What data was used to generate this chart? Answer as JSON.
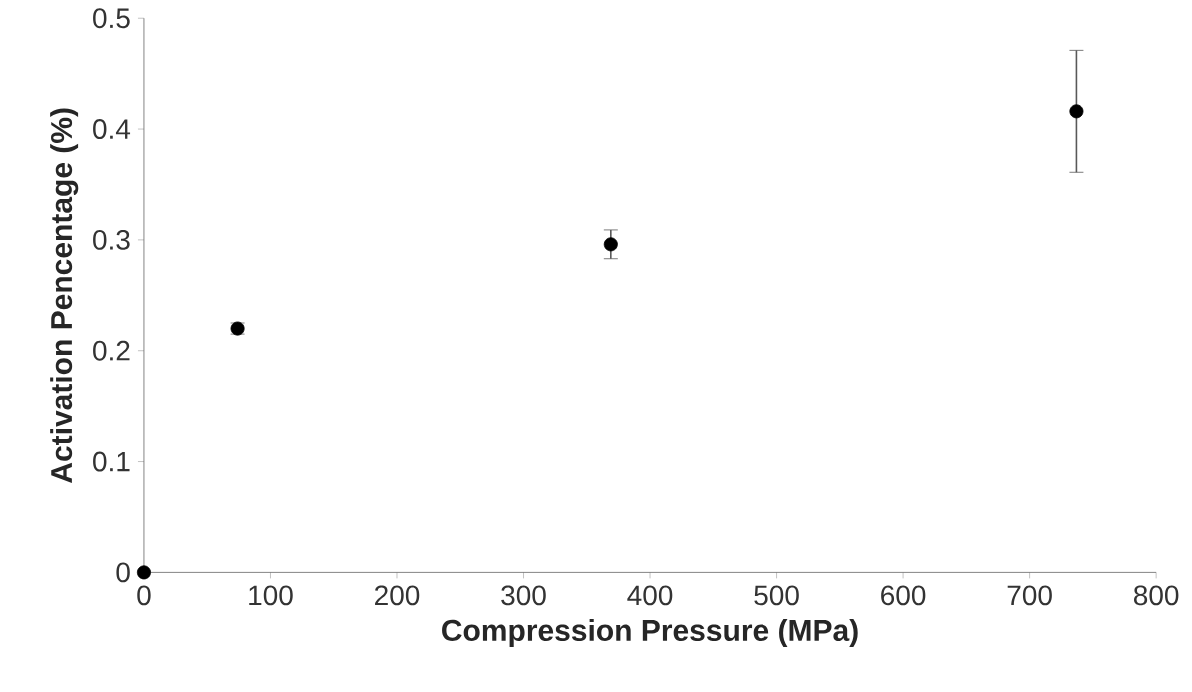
{
  "chart_data": {
    "type": "scatter",
    "xlabel": "Compression Pressure (MPa)",
    "ylabel": "Activation Pencentage (%)",
    "x": [
      0,
      74,
      369,
      737
    ],
    "values": [
      0,
      0.22,
      0.296,
      0.416
    ],
    "errors": [
      null,
      0.005,
      0.013,
      0.055
    ],
    "color": "#000000",
    "marker": "circle",
    "xlim": [
      0,
      800
    ],
    "xticks": [
      0,
      100,
      200,
      300,
      400,
      500,
      600,
      700,
      800
    ],
    "ylim": [
      0,
      0.5
    ],
    "yticks": [
      0,
      0.1,
      0.2,
      0.3,
      0.4,
      0.5
    ],
    "grid": false
  }
}
